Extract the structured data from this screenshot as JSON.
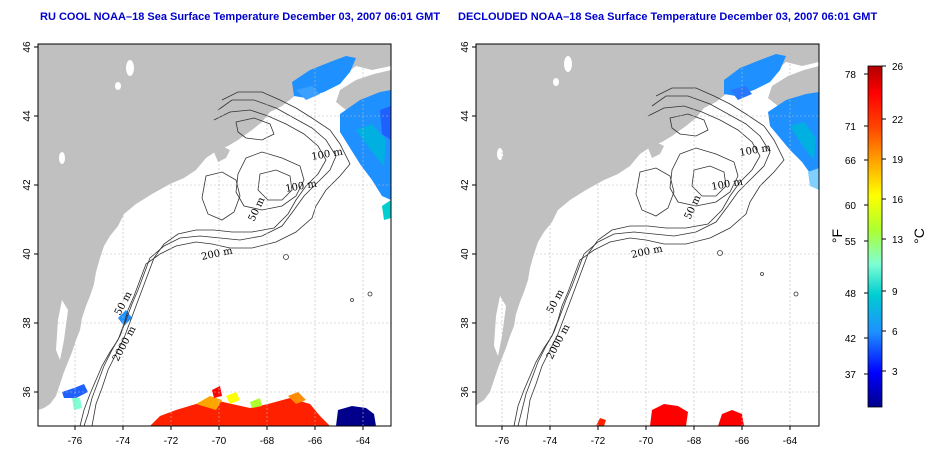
{
  "panels": [
    {
      "title": "RU COOL NOAA–18 Sea Surface Temperature December 03, 2007 06:01 GMT"
    },
    {
      "title": "DECLOUDED NOAA–18 Sea Surface Temperature December 03, 2007 06:01 GMT"
    }
  ],
  "axes": {
    "x_ticks": [
      "-76",
      "-74",
      "-72",
      "-70",
      "-68",
      "-66",
      "-64"
    ],
    "y_ticks": [
      "46",
      "44",
      "42",
      "40",
      "38",
      "36"
    ]
  },
  "contour_labels": {
    "depth_100": "100 m",
    "depth_50": "50 m",
    "depth_200": "200 m",
    "depth_2000": "2000 m"
  },
  "colorbar": {
    "fahrenheit_ticks": [
      "78",
      "71",
      "66",
      "60",
      "55",
      "48",
      "42",
      "37"
    ],
    "celsius_ticks": [
      "26",
      "22",
      "19",
      "16",
      "13",
      "9",
      "6",
      "3"
    ],
    "fahrenheit_unit": "°F",
    "celsius_unit": "°C",
    "range_celsius": [
      0,
      26
    ],
    "colors": [
      "#00008b",
      "#0000ff",
      "#1e90ff",
      "#00ced1",
      "#7fffd4",
      "#adff2f",
      "#ffff00",
      "#ffa500",
      "#ff4500",
      "#ff0000",
      "#b00000"
    ]
  },
  "map_colors": {
    "land": "#c0c0c0",
    "ocean": "#ffffff",
    "contour": "#333333",
    "grid": "#bbbbbb"
  }
}
